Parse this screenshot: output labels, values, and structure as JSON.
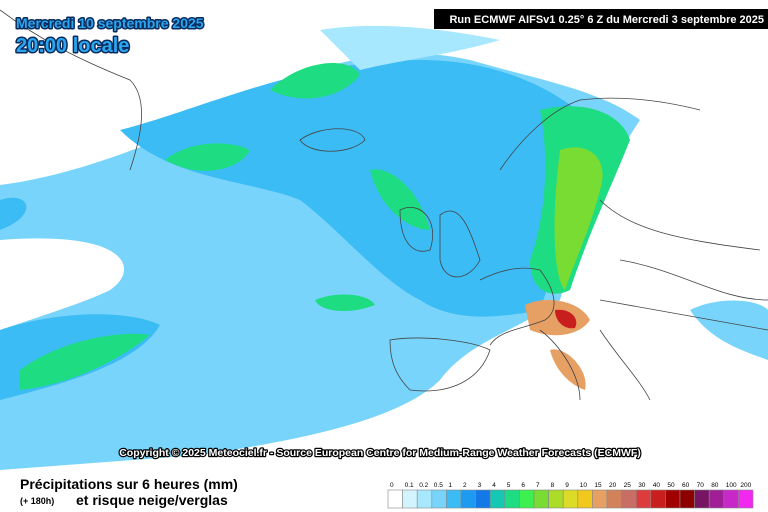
{
  "header": {
    "date": "Mercredi 10 septembre 2025",
    "time": "20:00 locale",
    "run": "Run ECMWF AIFSv1 0.25° 6 Z du Mercredi 3 septembre 2025"
  },
  "copyright": "Copyright © 2025 Meteociel.fr - Source European Centre for Medium-Range Weather Forecasts (ECMWF)",
  "footer": {
    "title": "Précipitations sur 6 heures (mm)",
    "lead": "(+ 180h)",
    "subtitle": "et risque neige/verglas"
  },
  "legend": {
    "items": [
      {
        "label": "0",
        "color": "#ffffff"
      },
      {
        "label": "0.1",
        "color": "#d2f4ff"
      },
      {
        "label": "0.2",
        "color": "#a8e8ff"
      },
      {
        "label": "0.5",
        "color": "#78d4fa"
      },
      {
        "label": "1",
        "color": "#3cbcf5"
      },
      {
        "label": "2",
        "color": "#1e9bf0"
      },
      {
        "label": "3",
        "color": "#1478e6"
      },
      {
        "label": "4",
        "color": "#14c8b4"
      },
      {
        "label": "5",
        "color": "#1edc82"
      },
      {
        "label": "6",
        "color": "#3cf050"
      },
      {
        "label": "7",
        "color": "#78dc32"
      },
      {
        "label": "8",
        "color": "#aadc28"
      },
      {
        "label": "9",
        "color": "#dcdc28"
      },
      {
        "label": "10",
        "color": "#f0c81e"
      },
      {
        "label": "15",
        "color": "#e6a064"
      },
      {
        "label": "20",
        "color": "#d2825a"
      },
      {
        "label": "25",
        "color": "#c86e64"
      },
      {
        "label": "30",
        "color": "#dc3c3c"
      },
      {
        "label": "40",
        "color": "#c81e1e"
      },
      {
        "label": "50",
        "color": "#a00000"
      },
      {
        "label": "60",
        "color": "#8c0000"
      },
      {
        "label": "70",
        "color": "#781464"
      },
      {
        "label": "80",
        "color": "#a01e96"
      },
      {
        "label": "100",
        "color": "#c828c8"
      },
      {
        "label": "200",
        "color": "#f028f0"
      }
    ]
  }
}
